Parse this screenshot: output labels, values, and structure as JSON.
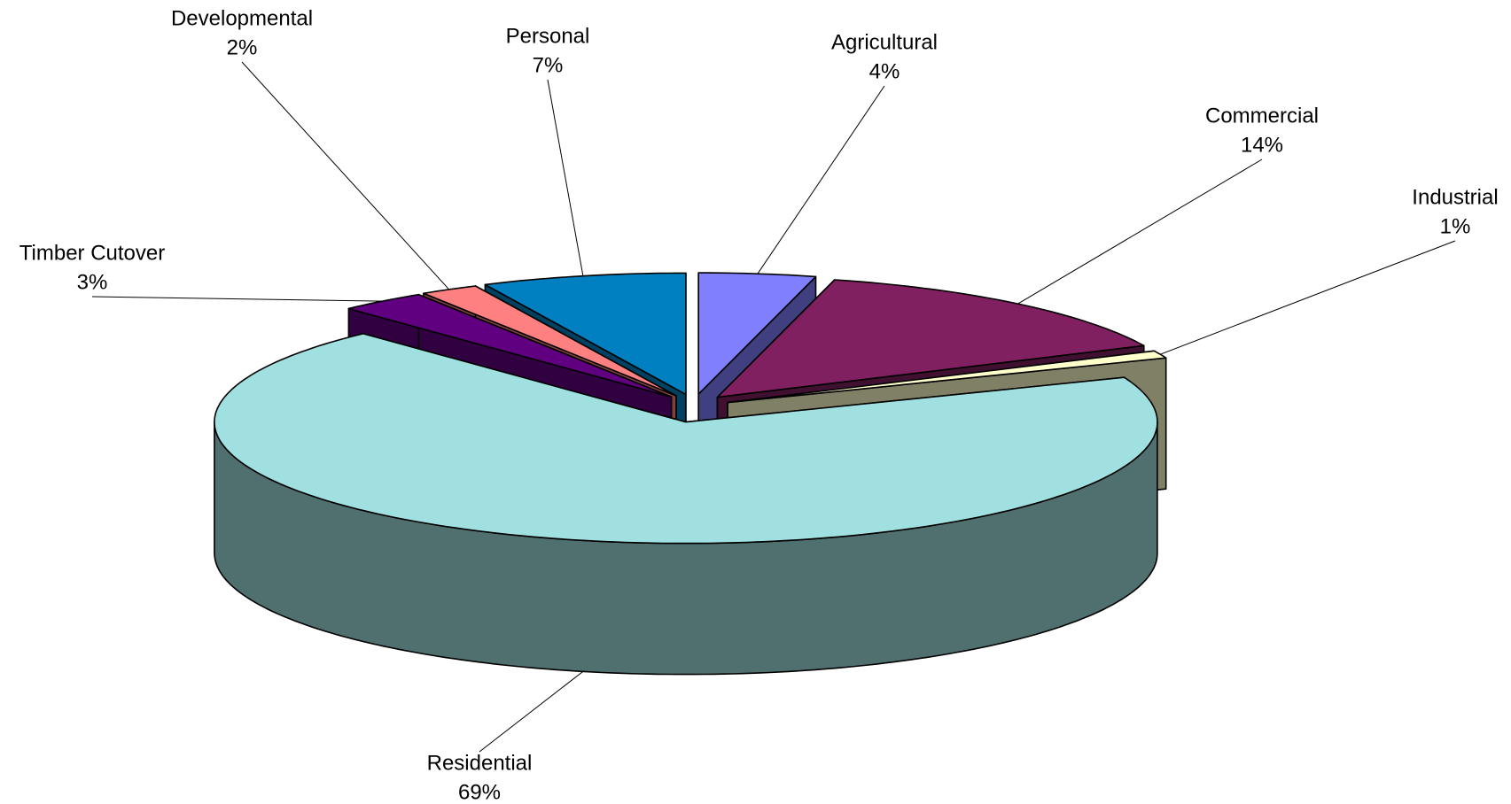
{
  "chart_data": {
    "type": "pie3d",
    "categories": [
      "Agricultural",
      "Commercial",
      "Industrial",
      "Residential",
      "Timber Cutover",
      "Developmental",
      "Personal"
    ],
    "values": [
      4,
      14,
      1,
      69,
      3,
      2,
      7
    ],
    "value_labels": [
      "4%",
      "14%",
      "1%",
      "69%",
      "3%",
      "2%",
      "7%"
    ],
    "colors": [
      "#8080ff",
      "#802060",
      "#ffffcc",
      "#a0e0e0",
      "#600080",
      "#ff8080",
      "#0080c0"
    ]
  }
}
